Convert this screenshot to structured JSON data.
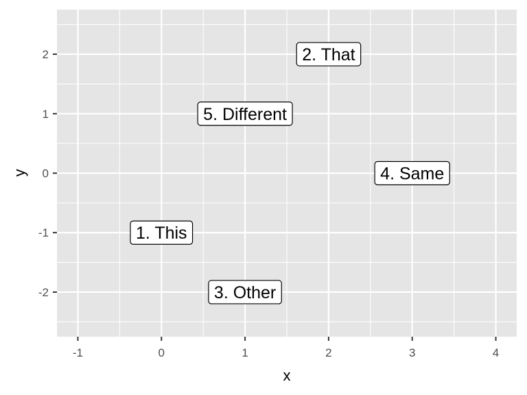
{
  "chart_data": {
    "type": "scatter",
    "title": "",
    "xlabel": "x",
    "ylabel": "y",
    "xlim": [
      -1.25,
      4.25
    ],
    "ylim": [
      -2.75,
      2.75
    ],
    "x_ticks": [
      -1,
      0,
      1,
      2,
      3,
      4
    ],
    "x_tick_labels": [
      "-1",
      "0",
      "1",
      "2",
      "3",
      "4"
    ],
    "y_ticks": [
      -2,
      -1,
      0,
      1,
      2
    ],
    "y_tick_labels": [
      "-2",
      "-1",
      "0",
      "1",
      "2"
    ],
    "grid": true,
    "panel_background": "#e5e5e5",
    "gridline_color": "#ffffff",
    "points": [
      {
        "x": 0,
        "y": -1,
        "label": "1. This"
      },
      {
        "x": 2,
        "y": 2,
        "label": "2. That"
      },
      {
        "x": 1,
        "y": -2,
        "label": "3. Other"
      },
      {
        "x": 3,
        "y": 0,
        "label": "4. Same"
      },
      {
        "x": 1,
        "y": 1,
        "label": "5. Different"
      }
    ]
  }
}
